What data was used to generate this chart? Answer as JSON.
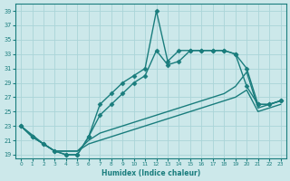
{
  "xlabel": "Humidex (Indice chaleur)",
  "bg_color": "#cce8ea",
  "grid_color": "#aad4d8",
  "line_color": "#1a7d7d",
  "xlim": [
    -0.5,
    23.5
  ],
  "ylim": [
    18.5,
    40
  ],
  "xticks": [
    0,
    1,
    2,
    3,
    4,
    5,
    6,
    7,
    8,
    9,
    10,
    11,
    12,
    13,
    14,
    15,
    16,
    17,
    18,
    19,
    20,
    21,
    22,
    23
  ],
  "yticks": [
    19,
    21,
    23,
    25,
    27,
    29,
    31,
    33,
    35,
    37,
    39
  ],
  "series": [
    {
      "x": [
        0,
        1,
        2,
        3,
        4,
        5,
        6,
        7,
        8,
        9,
        10,
        11,
        12,
        13,
        14,
        15,
        16,
        17,
        18,
        19,
        20,
        21,
        22,
        23
      ],
      "y": [
        23,
        21.5,
        20.5,
        19.5,
        19,
        19,
        21.5,
        26,
        27.5,
        29,
        30,
        31,
        39,
        32,
        33.5,
        33.5,
        33.5,
        33.5,
        33.5,
        33,
        28.5,
        26,
        26,
        26.5
      ],
      "marker": "D",
      "markersize": 2.5,
      "linewidth": 1.0
    },
    {
      "x": [
        0,
        1,
        2,
        3,
        4,
        5,
        6,
        7,
        8,
        9,
        10,
        11,
        12,
        13,
        14,
        15,
        16,
        17,
        18,
        19,
        20,
        21,
        22,
        23
      ],
      "y": [
        23,
        21.5,
        20.5,
        19.5,
        19,
        19,
        21.5,
        24.5,
        26,
        27.5,
        29,
        30,
        33.5,
        31.5,
        32,
        33.5,
        33.5,
        33.5,
        33.5,
        33,
        31,
        26,
        26,
        26.5
      ],
      "marker": "D",
      "markersize": 2.5,
      "linewidth": 1.0
    },
    {
      "x": [
        0,
        1,
        2,
        3,
        4,
        5,
        6,
        7,
        8,
        9,
        10,
        11,
        12,
        13,
        14,
        15,
        16,
        17,
        18,
        19,
        20,
        21,
        22,
        23
      ],
      "y": [
        23,
        21.5,
        20.5,
        19.5,
        19.5,
        19.5,
        21,
        22,
        22.5,
        23,
        23.5,
        24,
        24.5,
        25,
        25.5,
        26,
        26.5,
        27,
        27.5,
        28.5,
        30.5,
        25.5,
        26,
        26.5
      ],
      "marker": null,
      "markersize": 0,
      "linewidth": 1.0
    },
    {
      "x": [
        0,
        2,
        3,
        4,
        5,
        6,
        7,
        8,
        9,
        10,
        11,
        12,
        13,
        14,
        15,
        16,
        17,
        18,
        19,
        20,
        21,
        22,
        23
      ],
      "y": [
        23,
        20.5,
        19.5,
        19.5,
        19.5,
        20.5,
        21,
        21.5,
        22,
        22.5,
        23,
        23.5,
        24,
        24.5,
        25,
        25.5,
        26,
        26.5,
        27,
        28,
        25,
        25.5,
        26
      ],
      "marker": null,
      "markersize": 0,
      "linewidth": 1.0
    }
  ]
}
